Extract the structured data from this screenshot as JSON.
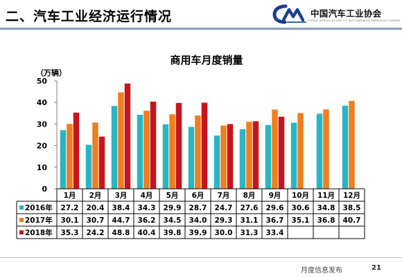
{
  "header": {
    "section_title": "二、汽车工业经济运行情况",
    "logo_name": "中国汽车工业协会",
    "logo_english": "CHINA ASSOCIATION OF AUTOMOBILE MANUFACTURERS",
    "logo_icon": "caam-logo-mark"
  },
  "footer": {
    "text": "月度信息发布",
    "page_number": "21"
  },
  "colors": {
    "2016": "#2bb5c3",
    "2017": "#f07e1e",
    "2018": "#c4161c",
    "header_rule": "#8a9bb3",
    "grid": "#7f7f7f"
  },
  "chart_data": {
    "type": "bar",
    "title": "商用车月度销量",
    "unit_label": "（万辆）",
    "ylim": [
      0,
      50
    ],
    "yticks": [
      0,
      10,
      20,
      30,
      40,
      50
    ],
    "grid": false,
    "legend_placement": "table-left",
    "categories": [
      "1月",
      "2月",
      "3月",
      "4月",
      "5月",
      "6月",
      "7月",
      "8月",
      "9月",
      "10月",
      "11月",
      "12月"
    ],
    "series": [
      {
        "name": "2016年",
        "key": "2016",
        "values": [
          27.2,
          20.4,
          38.4,
          34.3,
          29.9,
          28.7,
          24.7,
          27.6,
          29.6,
          30.6,
          34.8,
          38.5
        ]
      },
      {
        "name": "2017年",
        "key": "2017",
        "values": [
          30.1,
          30.7,
          44.7,
          36.2,
          34.5,
          34.0,
          29.3,
          31.1,
          36.7,
          35.1,
          36.8,
          40.7
        ]
      },
      {
        "name": "2018年",
        "key": "2018",
        "values": [
          35.3,
          24.2,
          48.8,
          40.4,
          39.8,
          39.9,
          30.0,
          31.3,
          33.4,
          null,
          null,
          null
        ]
      }
    ]
  }
}
